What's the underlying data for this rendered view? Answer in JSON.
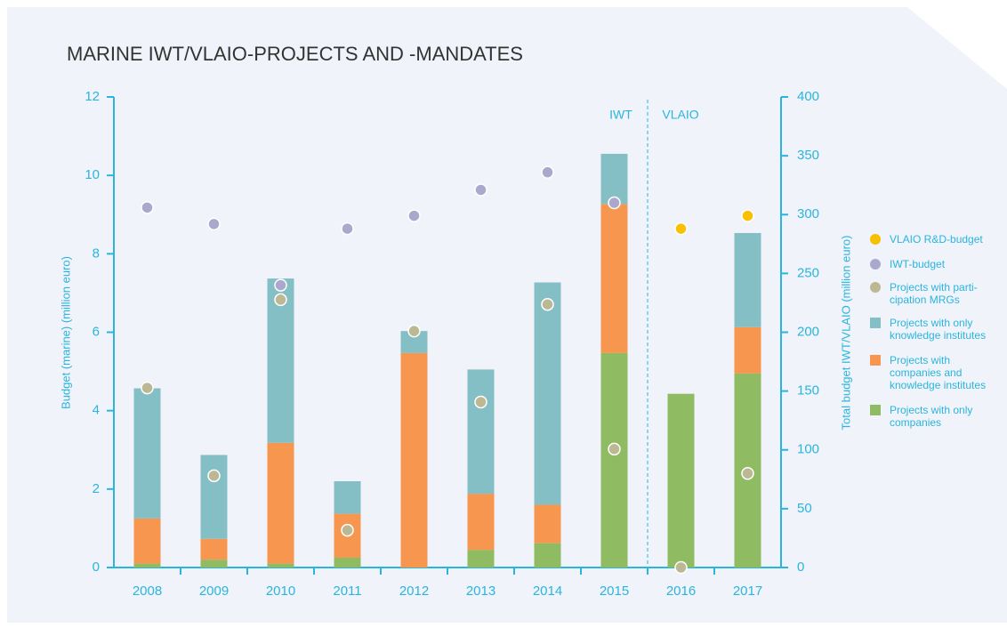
{
  "chart_data": {
    "type": "bar",
    "title": "MARINE IWT/VLAIO-PROJECTS AND -MANDATES",
    "ylabel": "Budget (marine) (million euro)",
    "y2label": "Total budget IWT/VLAIO (million euro)",
    "annotations": [
      "IWT",
      "VLAIO"
    ],
    "categories": [
      "2008",
      "2009",
      "2010",
      "2011",
      "2012",
      "2013",
      "2014",
      "2015",
      "2016",
      "2017"
    ],
    "ylim": [
      0,
      12
    ],
    "yticks": [
      0,
      2,
      4,
      6,
      8,
      10,
      12
    ],
    "y2lim": [
      0,
      400
    ],
    "y2ticks": [
      0,
      50,
      100,
      150,
      200,
      250,
      300,
      350,
      400
    ],
    "legend": "right",
    "series": [
      {
        "name": "VLAIO R&D-budget",
        "kind": "scatter",
        "axis": "y2",
        "color": "#f8c000",
        "values": [
          null,
          null,
          null,
          null,
          null,
          null,
          null,
          null,
          288,
          299
        ]
      },
      {
        "name": "IWT-budget",
        "kind": "scatter",
        "axis": "y2",
        "color": "#aaa8cc",
        "values": [
          306,
          292,
          240,
          288,
          299,
          321,
          336,
          310,
          null,
          null
        ]
      },
      {
        "name": "Projects with parti-\ncipation MRGs",
        "kind": "scatter",
        "color": "#bdb894",
        "values": [
          4.58,
          2.34,
          6.83,
          0.95,
          6.03,
          4.22,
          6.71,
          3.02,
          0,
          2.4
        ]
      },
      {
        "name": "Projects with only\nknowledge institutes",
        "kind": "bar",
        "color": "#85bfc6",
        "values": [
          3.32,
          2.14,
          4.19,
          0.83,
          0.56,
          3.17,
          5.67,
          1.28,
          0,
          2.4
        ]
      },
      {
        "name": "Projects with\ncompanies and\nknowledge institutes",
        "kind": "bar",
        "color": "#f7964f",
        "values": [
          1.15,
          0.53,
          3.08,
          1.12,
          5.47,
          1.43,
          0.98,
          3.8,
          0,
          1.18
        ]
      },
      {
        "name": "Projects with only\ncompanies",
        "kind": "bar",
        "color": "#8fbb62",
        "values": [
          0.1,
          0.2,
          0.1,
          0.25,
          0,
          0.45,
          0.62,
          5.47,
          4.43,
          4.95
        ]
      }
    ]
  }
}
